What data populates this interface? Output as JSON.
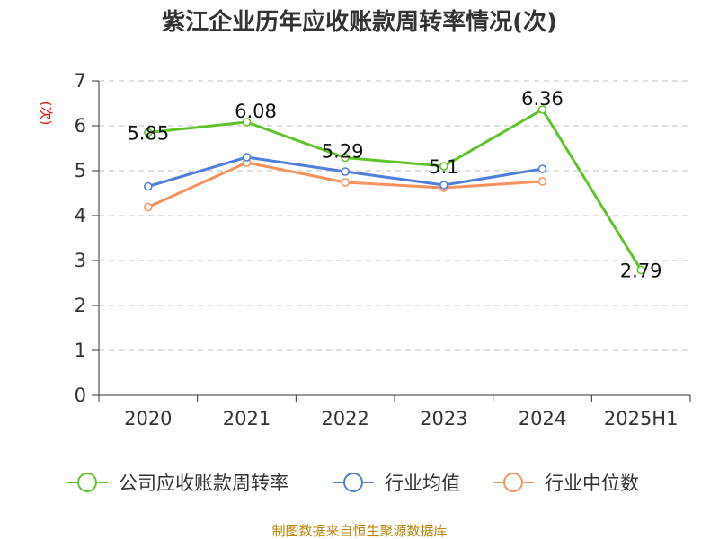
{
  "chart_data": {
    "type": "line",
    "title": "紫江企业历年应收账款周转率情况(次)",
    "ylabel": "(次)",
    "xlabel": "",
    "categories": [
      "2020",
      "2021",
      "2022",
      "2023",
      "2024",
      "2025H1"
    ],
    "ylim": [
      0,
      7
    ],
    "yticks": [
      0,
      1,
      2,
      3,
      4,
      5,
      6,
      7
    ],
    "grid": true,
    "legend_position": "bottom",
    "series": [
      {
        "name": "公司应收账款周转率",
        "color": "#5ec42a",
        "values": [
          5.85,
          6.08,
          5.29,
          5.1,
          6.36,
          2.79
        ],
        "labels": [
          "5.85",
          "6.08",
          "5.29",
          "5.1",
          "6.36",
          "2.79"
        ]
      },
      {
        "name": "行业均值",
        "color": "#4f7fdb",
        "values": [
          4.65,
          5.3,
          4.98,
          4.68,
          5.04,
          null
        ]
      },
      {
        "name": "行业中位数",
        "color": "#f5925e",
        "values": [
          4.19,
          5.18,
          4.74,
          4.62,
          4.76,
          null
        ]
      }
    ]
  },
  "source": "制图数据来自恒生聚源数据库"
}
